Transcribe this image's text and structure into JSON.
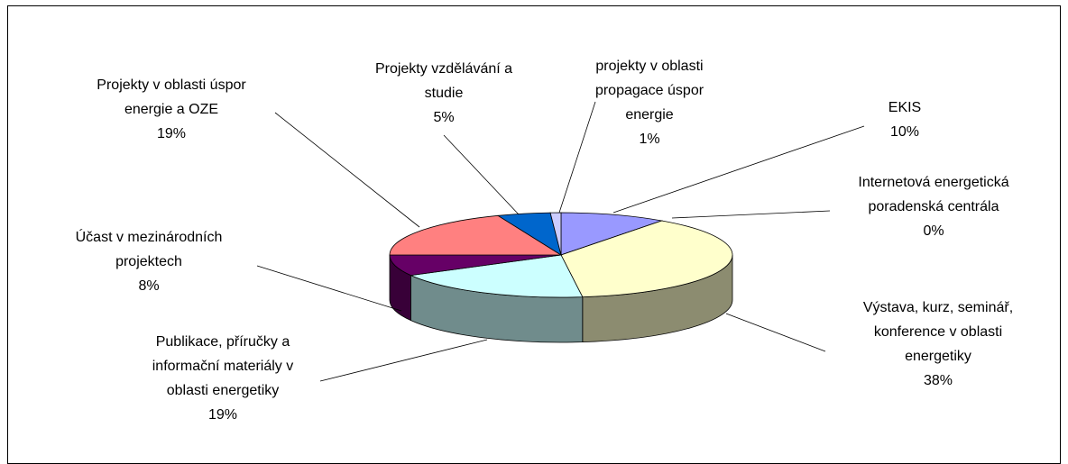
{
  "chart_data": {
    "type": "pie3d",
    "categories": [
      "EKIS",
      "Internetová energetická\nporadenská centrála",
      "Výstava, kurz, seminář,\nkonference v oblasti\nenergetiky",
      "Publikace, příručky a\ninformační materiály v\noblasti energetiky",
      "Účast v mezinárodních\nprojektech",
      "Projekty v oblasti úspor\nenergie a OZE",
      "Projekty vzdělávání a\nstudie",
      "projekty v oblasti\npropagace úspor\nenergie"
    ],
    "values": [
      10,
      0,
      38,
      19,
      8,
      19,
      5,
      1
    ],
    "value_labels": [
      "10%",
      "0%",
      "38%",
      "19%",
      "8%",
      "19%",
      "5%",
      "1%"
    ],
    "colors": [
      "#9999ff",
      "#993366",
      "#ffffcc",
      "#ccffff",
      "#660066",
      "#ff8080",
      "#0066cc",
      "#ccccff"
    ]
  }
}
